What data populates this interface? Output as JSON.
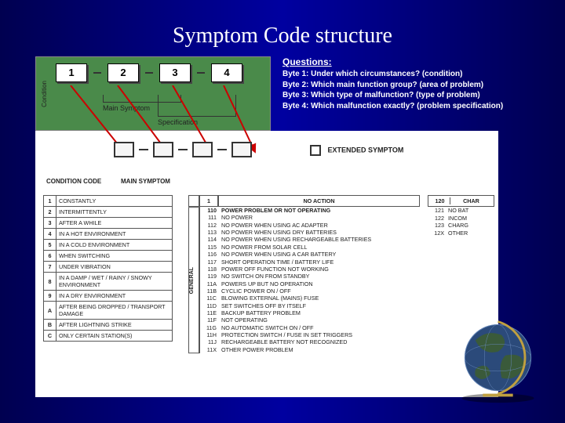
{
  "title": "Symptom Code structure",
  "bytes": [
    "1",
    "2",
    "3",
    "4"
  ],
  "byte_labels": {
    "condition": "Condition",
    "main_symptom": "Main Symptom",
    "specification": "Specification"
  },
  "questions": {
    "heading": "Questions:",
    "lines": [
      "Byte 1: Under which circumstances? (condition)",
      "Byte 2: Which main function group? (area of problem)",
      "Byte 3: Which type of malfunction? (type of problem)",
      "Byte 4: Which malfunction exactly? (problem specification)"
    ]
  },
  "extended_symptom": "EXTENDED SYMPTOM",
  "sheet_headers": {
    "condition_code": "CONDITION CODE",
    "main_symptom": "MAIN SYMPTOM"
  },
  "condition_codes": [
    {
      "n": "1",
      "t": "CONSTANTLY"
    },
    {
      "n": "2",
      "t": "INTERMITTENTLY"
    },
    {
      "n": "3",
      "t": "AFTER A WHILE"
    },
    {
      "n": "4",
      "t": "IN A HOT ENVIRONMENT"
    },
    {
      "n": "5",
      "t": "IN A COLD ENVIRONMENT"
    },
    {
      "n": "6",
      "t": "WHEN SWITCHING"
    },
    {
      "n": "7",
      "t": "UNDER VIBRATION"
    },
    {
      "n": "8",
      "t": "IN A DAMP / WET / RAINY / SNOWY ENVIRONMENT"
    },
    {
      "n": "9",
      "t": "IN A DRY ENVIRONMENT"
    },
    {
      "n": "A",
      "t": "AFTER BEING DROPPED / TRANSPORT DAMAGE"
    },
    {
      "n": "B",
      "t": "AFTER LIGHTNING STRIKE"
    },
    {
      "n": "C",
      "t": "ONLY CERTAIN STATION(S)"
    }
  ],
  "general_label": "GENERAL",
  "main_header": {
    "num": "1",
    "text": "NO ACTION"
  },
  "main_codes": [
    {
      "c": "110",
      "t": "POWER PROBLEM OR NOT OPERATING"
    },
    {
      "c": "111",
      "t": "NO POWER"
    },
    {
      "c": "112",
      "t": "NO POWER WHEN USING AC ADAPTER"
    },
    {
      "c": "113",
      "t": "NO POWER WHEN USING DRY BATTERIES"
    },
    {
      "c": "114",
      "t": "NO POWER WHEN USING RECHARGEABLE BATTERIES"
    },
    {
      "c": "115",
      "t": "NO POWER FROM SOLAR CELL"
    },
    {
      "c": "116",
      "t": "NO POWER WHEN USING A CAR BATTERY"
    },
    {
      "c": "117",
      "t": "SHORT OPERATION TIME / BATTERY LIFE"
    },
    {
      "c": "118",
      "t": "POWER OFF FUNCTION NOT WORKING"
    },
    {
      "c": "119",
      "t": "NO SWITCH ON FROM STANDBY"
    },
    {
      "c": "11A",
      "t": "POWERS UP BUT NO OPERATION"
    },
    {
      "c": "11B",
      "t": "CYCLIC POWER ON / OFF"
    },
    {
      "c": "11C",
      "t": "BLOWING EXTERNAL (MAINS) FUSE"
    },
    {
      "c": "11D",
      "t": "SET SWITCHES OFF BY ITSELF"
    },
    {
      "c": "11E",
      "t": "BACKUP BATTERY PROBLEM"
    },
    {
      "c": "11F",
      "t": "NOT OPERATING"
    },
    {
      "c": "11G",
      "t": "NO AUTOMATIC SWITCH ON / OFF"
    },
    {
      "c": "11H",
      "t": "PROTECTION SWITCH / FUSE IN SET TRIGGERS"
    },
    {
      "c": "11J",
      "t": "RECHARGEABLE BATTERY NOT RECOGNIZED"
    },
    {
      "c": "11X",
      "t": "OTHER POWER PROBLEM"
    }
  ],
  "right_header": {
    "num": "120",
    "text": "CHAR"
  },
  "right_codes": [
    {
      "c": "121",
      "t": "NO BAT"
    },
    {
      "c": "122",
      "t": "INCOM"
    },
    {
      "c": "123",
      "t": "CHARG"
    },
    {
      "c": "12X",
      "t": "OTHER"
    }
  ]
}
